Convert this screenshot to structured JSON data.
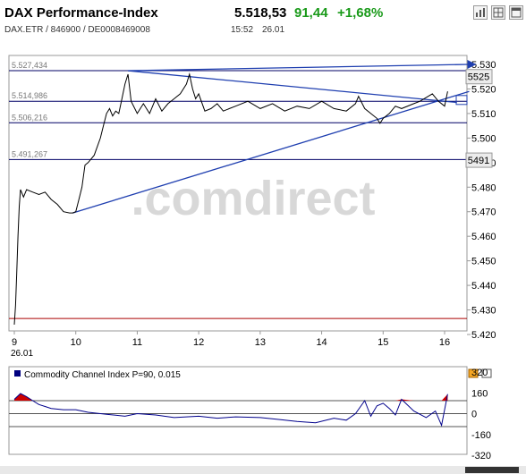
{
  "header": {
    "title": "DAX Performance-Index",
    "subtitle": "DAX.ETR  /  846900  /  DE0008469008",
    "price": "5.518,53",
    "change": "91,44",
    "change_pct": "+1,68%",
    "time": "15:52",
    "date": "26.01",
    "colors": {
      "positive": "#1a9a1a"
    },
    "toolbar_icons": [
      "bar-chart-icon",
      "grid-icon",
      "expand-icon"
    ]
  },
  "watermark": ".comdirect",
  "chart_data": [
    {
      "type": "line",
      "x_ticks": [
        "9",
        "10",
        "11",
        "12",
        "13",
        "14",
        "15",
        "16"
      ],
      "x_sublabel": "26.01",
      "y_ticks": [
        "5.530",
        "5.520",
        "5.510",
        "5.500",
        "5.490",
        "5.480",
        "5.470",
        "5.460",
        "5.450",
        "5.440",
        "5.430",
        "5.420"
      ],
      "ylim": [
        5.42,
        5.53
      ],
      "h_lines": [
        {
          "label": "5.527,434",
          "value": 5.527434
        },
        {
          "label": "5.514,986",
          "value": 5.514986
        },
        {
          "label": "5.506,216",
          "value": 5.506216
        },
        {
          "label": "5.491,267",
          "value": 5.491267
        }
      ],
      "red_line": 5.4265,
      "price_tags": [
        "5525",
        "5491"
      ],
      "trendlines": [
        {
          "from": [
            10.85,
            5.527434
          ],
          "to": [
            16.4,
            5.53
          ]
        },
        {
          "from": [
            10.85,
            5.527434
          ],
          "to": [
            16.2,
            5.5145
          ]
        },
        {
          "from": [
            9.95,
            5.4695
          ],
          "to": [
            16.4,
            5.519
          ]
        }
      ],
      "series": [
        {
          "x": [
            9.0,
            9.02,
            9.04,
            9.06,
            9.08,
            9.1,
            9.15,
            9.2,
            9.3,
            9.4,
            9.5,
            9.6,
            9.7,
            9.8,
            9.9,
            9.95,
            10.0,
            10.05,
            10.1,
            10.15,
            10.2,
            10.3,
            10.4,
            10.45,
            10.5,
            10.55,
            10.6,
            10.65,
            10.7,
            10.75,
            10.8,
            10.85,
            10.9,
            11.0,
            11.1,
            11.2,
            11.3,
            11.4,
            11.5,
            11.6,
            11.7,
            11.8,
            11.85,
            11.9,
            11.95,
            12.0,
            12.1,
            12.2,
            12.3,
            12.4,
            12.5,
            12.6,
            12.8,
            13.0,
            13.2,
            13.4,
            13.6,
            13.8,
            14.0,
            14.2,
            14.4,
            14.55,
            14.6,
            14.7,
            14.8,
            14.9,
            14.95,
            15.0,
            15.1,
            15.2,
            15.3,
            15.5,
            15.6,
            15.8,
            15.9,
            16.0,
            16.05
          ],
          "y": [
            5.424,
            5.432,
            5.445,
            5.46,
            5.472,
            5.479,
            5.476,
            5.479,
            5.478,
            5.477,
            5.478,
            5.475,
            5.473,
            5.47,
            5.4695,
            5.4695,
            5.47,
            5.475,
            5.48,
            5.489,
            5.49,
            5.493,
            5.5,
            5.505,
            5.51,
            5.512,
            5.509,
            5.511,
            5.51,
            5.516,
            5.522,
            5.526,
            5.515,
            5.51,
            5.514,
            5.51,
            5.516,
            5.511,
            5.514,
            5.516,
            5.518,
            5.522,
            5.526,
            5.52,
            5.516,
            5.518,
            5.511,
            5.512,
            5.514,
            5.511,
            5.512,
            5.513,
            5.515,
            5.512,
            5.514,
            5.511,
            5.513,
            5.512,
            5.515,
            5.512,
            5.511,
            5.514,
            5.517,
            5.512,
            5.51,
            5.508,
            5.506,
            5.508,
            5.51,
            5.513,
            5.512,
            5.514,
            5.515,
            5.518,
            5.515,
            5.513,
            5.519
          ]
        }
      ],
      "grid": false
    },
    {
      "type": "area",
      "title": "Commodity Channel Index P=90, 0.015",
      "y_ticks": [
        "320",
        "160",
        "0",
        "-160",
        "-320"
      ],
      "ylim": [
        -320,
        320
      ],
      "h_lines": [
        100,
        0,
        -100
      ],
      "colors": {
        "positive": "#cc0000",
        "negative": "#119911",
        "line": "#00008b"
      },
      "series": [
        {
          "x": [
            9.0,
            9.1,
            9.2,
            9.3,
            9.4,
            9.5,
            9.6,
            9.8,
            10.0,
            10.2,
            10.5,
            10.8,
            11.0,
            11.3,
            11.6,
            12.0,
            12.3,
            12.6,
            13.0,
            13.3,
            13.6,
            13.9,
            14.2,
            14.4,
            14.55,
            14.7,
            14.8,
            14.9,
            15.0,
            15.1,
            15.2,
            15.3,
            15.5,
            15.7,
            15.85,
            15.95,
            16.05
          ],
          "y": [
            110,
            155,
            130,
            100,
            70,
            55,
            40,
            30,
            30,
            10,
            -5,
            -20,
            0,
            -10,
            -30,
            -20,
            -35,
            -25,
            -30,
            -45,
            -60,
            -70,
            -35,
            -50,
            0,
            100,
            -20,
            60,
            80,
            40,
            -10,
            110,
            20,
            -30,
            20,
            -90,
            150
          ]
        }
      ]
    }
  ],
  "scrollbar": {}
}
